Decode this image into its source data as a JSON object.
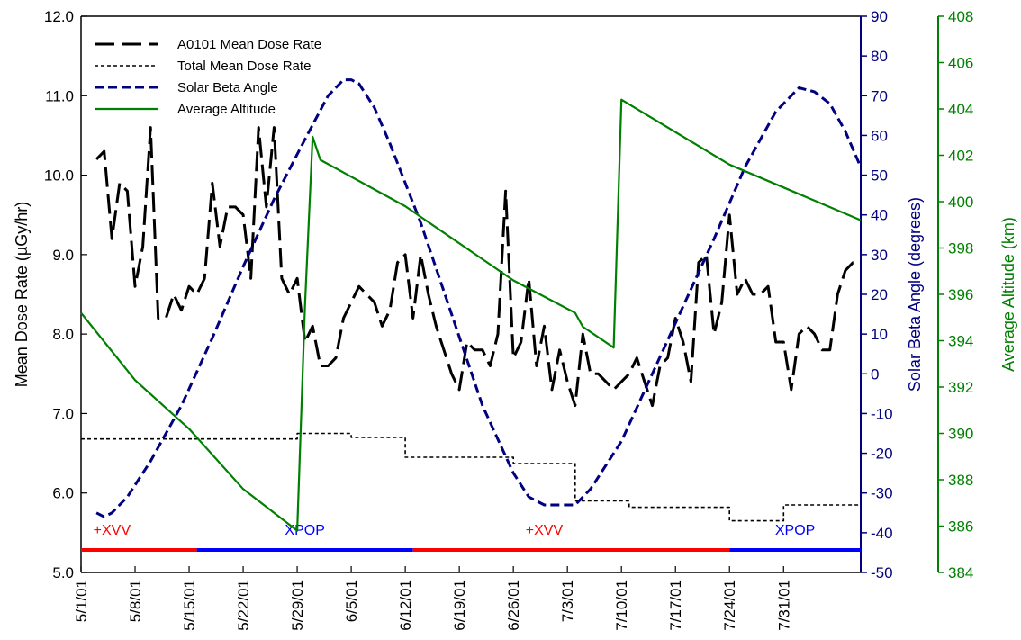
{
  "chart_data": {
    "type": "line",
    "x_ticks": [
      "5/1/01",
      "5/8/01",
      "5/15/01",
      "5/22/01",
      "5/29/01",
      "6/5/01",
      "6/12/01",
      "6/19/01",
      "6/26/01",
      "7/3/01",
      "7/10/01",
      "7/17/01",
      "7/24/01",
      "7/31/01"
    ],
    "x_range": [
      "5/1/01",
      "8/10/01"
    ],
    "axes": {
      "left": {
        "label": "Mean Dose Rate (µGy/hr)",
        "ylim": [
          5.0,
          12.0
        ],
        "ticks": [
          "5.0",
          "6.0",
          "7.0",
          "8.0",
          "9.0",
          "10.0",
          "11.0",
          "12.0"
        ],
        "color": "#000000"
      },
      "right1": {
        "label": "Solar Beta Angle (degrees)",
        "ylim": [
          -50,
          90
        ],
        "ticks": [
          "-50",
          "-40",
          "-30",
          "-20",
          "-10",
          "0",
          "10",
          "20",
          "30",
          "40",
          "50",
          "60",
          "70",
          "80",
          "90"
        ],
        "color": "#000080"
      },
      "right2": {
        "label": "Average Altitude (km)",
        "ylim": [
          384,
          408
        ],
        "ticks": [
          "384",
          "386",
          "388",
          "390",
          "392",
          "394",
          "396",
          "398",
          "400",
          "402",
          "404",
          "406",
          "408"
        ],
        "color": "#008000"
      }
    },
    "grid": false,
    "legend_position": "top-left",
    "series": [
      {
        "name": "A0101 Mean Dose Rate",
        "axis": "left",
        "color": "#000000",
        "dash": "long-dash",
        "x": [
          "5/3/01",
          "5/4/01",
          "5/5/01",
          "5/6/01",
          "5/7/01",
          "5/8/01",
          "5/9/01",
          "5/10/01",
          "5/11/01",
          "5/12/01",
          "5/13/01",
          "5/14/01",
          "5/15/01",
          "5/16/01",
          "5/17/01",
          "5/18/01",
          "5/19/01",
          "5/20/01",
          "5/21/01",
          "5/22/01",
          "5/23/01",
          "5/24/01",
          "5/25/01",
          "5/26/01",
          "5/27/01",
          "5/28/01",
          "5/29/01",
          "5/30/01",
          "5/31/01",
          "6/1/01",
          "6/2/01",
          "6/3/01",
          "6/4/01",
          "6/5/01",
          "6/6/01",
          "6/7/01",
          "6/8/01",
          "6/9/01",
          "6/10/01",
          "6/11/01",
          "6/12/01",
          "6/13/01",
          "6/14/01",
          "6/15/01",
          "6/16/01",
          "6/17/01",
          "6/18/01",
          "6/19/01",
          "6/20/01",
          "6/21/01",
          "6/22/01",
          "6/23/01",
          "6/24/01",
          "6/25/01",
          "6/26/01",
          "6/27/01",
          "6/28/01",
          "6/29/01",
          "6/30/01",
          "7/1/01",
          "7/2/01",
          "7/3/01",
          "7/4/01",
          "7/5/01",
          "7/6/01",
          "7/7/01",
          "7/8/01",
          "7/9/01",
          "7/10/01",
          "7/11/01",
          "7/12/01",
          "7/13/01",
          "7/14/01",
          "7/15/01",
          "7/16/01",
          "7/17/01",
          "7/18/01",
          "7/19/01",
          "7/20/01",
          "7/21/01",
          "7/22/01",
          "7/23/01",
          "7/24/01",
          "7/25/01",
          "7/26/01",
          "7/27/01",
          "7/28/01",
          "7/29/01",
          "7/30/01",
          "7/31/01",
          "8/1/01",
          "8/2/01",
          "8/3/01",
          "8/4/01",
          "8/5/01",
          "8/6/01",
          "8/7/01",
          "8/8/01",
          "8/9/01",
          "8/10/01"
        ],
        "values": [
          10.2,
          10.3,
          9.2,
          9.9,
          9.8,
          8.6,
          9.1,
          10.6,
          8.2,
          8.2,
          8.5,
          8.3,
          8.6,
          8.5,
          8.7,
          9.9,
          9.1,
          9.6,
          9.6,
          9.5,
          8.7,
          10.6,
          9.6,
          10.6,
          8.7,
          8.5,
          8.7,
          7.9,
          8.1,
          7.6,
          7.6,
          7.7,
          8.2,
          8.4,
          8.6,
          8.5,
          8.4,
          8.1,
          8.3,
          8.9,
          9.0,
          8.2,
          9.0,
          8.5,
          8.1,
          7.8,
          7.5,
          7.3,
          7.9,
          7.8,
          7.8,
          7.6,
          8.0,
          9.8,
          7.7,
          7.9,
          8.7,
          7.6,
          8.1,
          7.3,
          7.8,
          7.4,
          7.1,
          8.0,
          7.5,
          7.5,
          7.4,
          7.3,
          7.4,
          7.5,
          7.7,
          7.4,
          7.1,
          7.6,
          7.7,
          8.2,
          7.9,
          7.4,
          8.9,
          9.0,
          8.0,
          8.4,
          9.5,
          8.5,
          8.7,
          8.5,
          8.5,
          8.6,
          7.9,
          7.9,
          7.3,
          8.0,
          8.1,
          8.0,
          7.8,
          7.8,
          8.5,
          8.8,
          8.9,
          8.9
        ]
      },
      {
        "name": "Total Mean Dose Rate",
        "axis": "left",
        "color": "#000000",
        "dash": "short-dash",
        "x": [
          "5/1/01",
          "5/15/01",
          "5/29/01",
          "6/5/01",
          "6/12/01",
          "6/26/01",
          "7/4/01",
          "7/11/01",
          "7/24/01",
          "7/31/01",
          "8/10/01"
        ],
        "values": [
          6.68,
          6.68,
          6.75,
          6.7,
          6.45,
          6.37,
          5.9,
          5.82,
          5.65,
          5.85,
          6.3
        ]
      },
      {
        "name": "Solar Beta Angle",
        "axis": "right1",
        "color": "#000080",
        "dash": "medium-dash",
        "x": [
          "5/3/01",
          "5/4/01",
          "5/5/01",
          "5/7/01",
          "5/10/01",
          "5/14/01",
          "5/18/01",
          "5/22/01",
          "5/26/01",
          "5/30/01",
          "6/2/01",
          "6/4/01",
          "6/5/01",
          "6/6/01",
          "6/8/01",
          "6/10/01",
          "6/14/01",
          "6/18/01",
          "6/22/01",
          "6/26/01",
          "6/28/01",
          "6/30/01",
          "7/2/01",
          "7/4/01",
          "7/6/01",
          "7/10/01",
          "7/14/01",
          "7/18/01",
          "7/22/01",
          "7/26/01",
          "7/30/01",
          "8/2/01",
          "8/4/01",
          "8/6/01",
          "8/8/01",
          "8/10/01"
        ],
        "values": [
          -35,
          -36,
          -35,
          -31,
          -22,
          -8,
          9,
          27,
          44,
          59,
          70,
          74,
          74,
          73,
          67,
          58,
          38,
          15,
          -8,
          -25,
          -31,
          -33,
          -33,
          -33,
          -29,
          -17,
          0,
          17,
          34,
          52,
          66,
          72,
          71,
          68,
          61,
          52
        ]
      },
      {
        "name": "Average Altitude",
        "axis": "right2",
        "color": "#008000",
        "dash": "solid",
        "x": [
          "5/1/01",
          "5/8/01",
          "5/15/01",
          "5/22/01",
          "5/29/01",
          "5/30/01",
          "5/31/01",
          "6/1/01",
          "6/12/01",
          "6/26/01",
          "7/4/01",
          "7/5/01",
          "7/9/01",
          "7/10/01",
          "7/24/01",
          "8/10/01"
        ],
        "values": [
          395.2,
          392.3,
          390.2,
          387.6,
          385.8,
          395.5,
          402.8,
          401.8,
          399.8,
          396.6,
          395.2,
          394.6,
          393.7,
          404.4,
          401.6,
          399.2
        ]
      }
    ],
    "annotations": [
      {
        "text": "+XVV",
        "color": "#ff0000",
        "x_start": "5/1/01",
        "x_end": "5/16/01"
      },
      {
        "text": "XPOP",
        "color": "#0000ff",
        "x_start": "5/16/01",
        "x_end": "6/13/01"
      },
      {
        "text": "+XVV",
        "color": "#ff0000",
        "x_start": "6/13/01",
        "x_end": "7/24/01"
      },
      {
        "text": "XPOP",
        "color": "#0000ff",
        "x_start": "7/24/01",
        "x_end": "8/10/01"
      }
    ]
  }
}
